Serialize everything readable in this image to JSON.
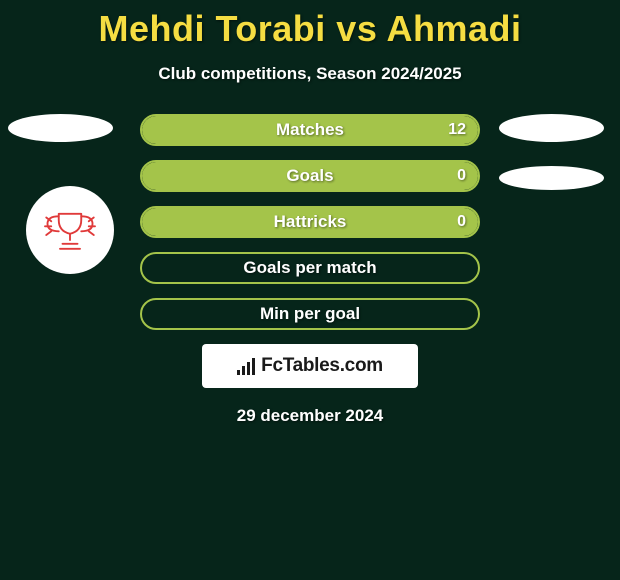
{
  "header": {
    "title": "Mehdi Torabi vs Ahmadi",
    "subtitle": "Club competitions, Season 2024/2025",
    "title_color": "#f5dd42"
  },
  "theme": {
    "background": "#06251a",
    "row_border": "#a4c44a",
    "row_fill": "#a4c44a",
    "text_white": "#ffffff"
  },
  "stats": [
    {
      "label": "Matches",
      "value": "12",
      "fill_pct": 100
    },
    {
      "label": "Goals",
      "value": "0",
      "fill_pct": 100
    },
    {
      "label": "Hattricks",
      "value": "0",
      "fill_pct": 100
    },
    {
      "label": "Goals per match",
      "value": "",
      "fill_pct": 0
    },
    {
      "label": "Min per goal",
      "value": "",
      "fill_pct": 0
    }
  ],
  "badge": {
    "stroke": "#e03a3a"
  },
  "footer": {
    "logo_text": "FcTables.com",
    "date": "29 december 2024"
  }
}
